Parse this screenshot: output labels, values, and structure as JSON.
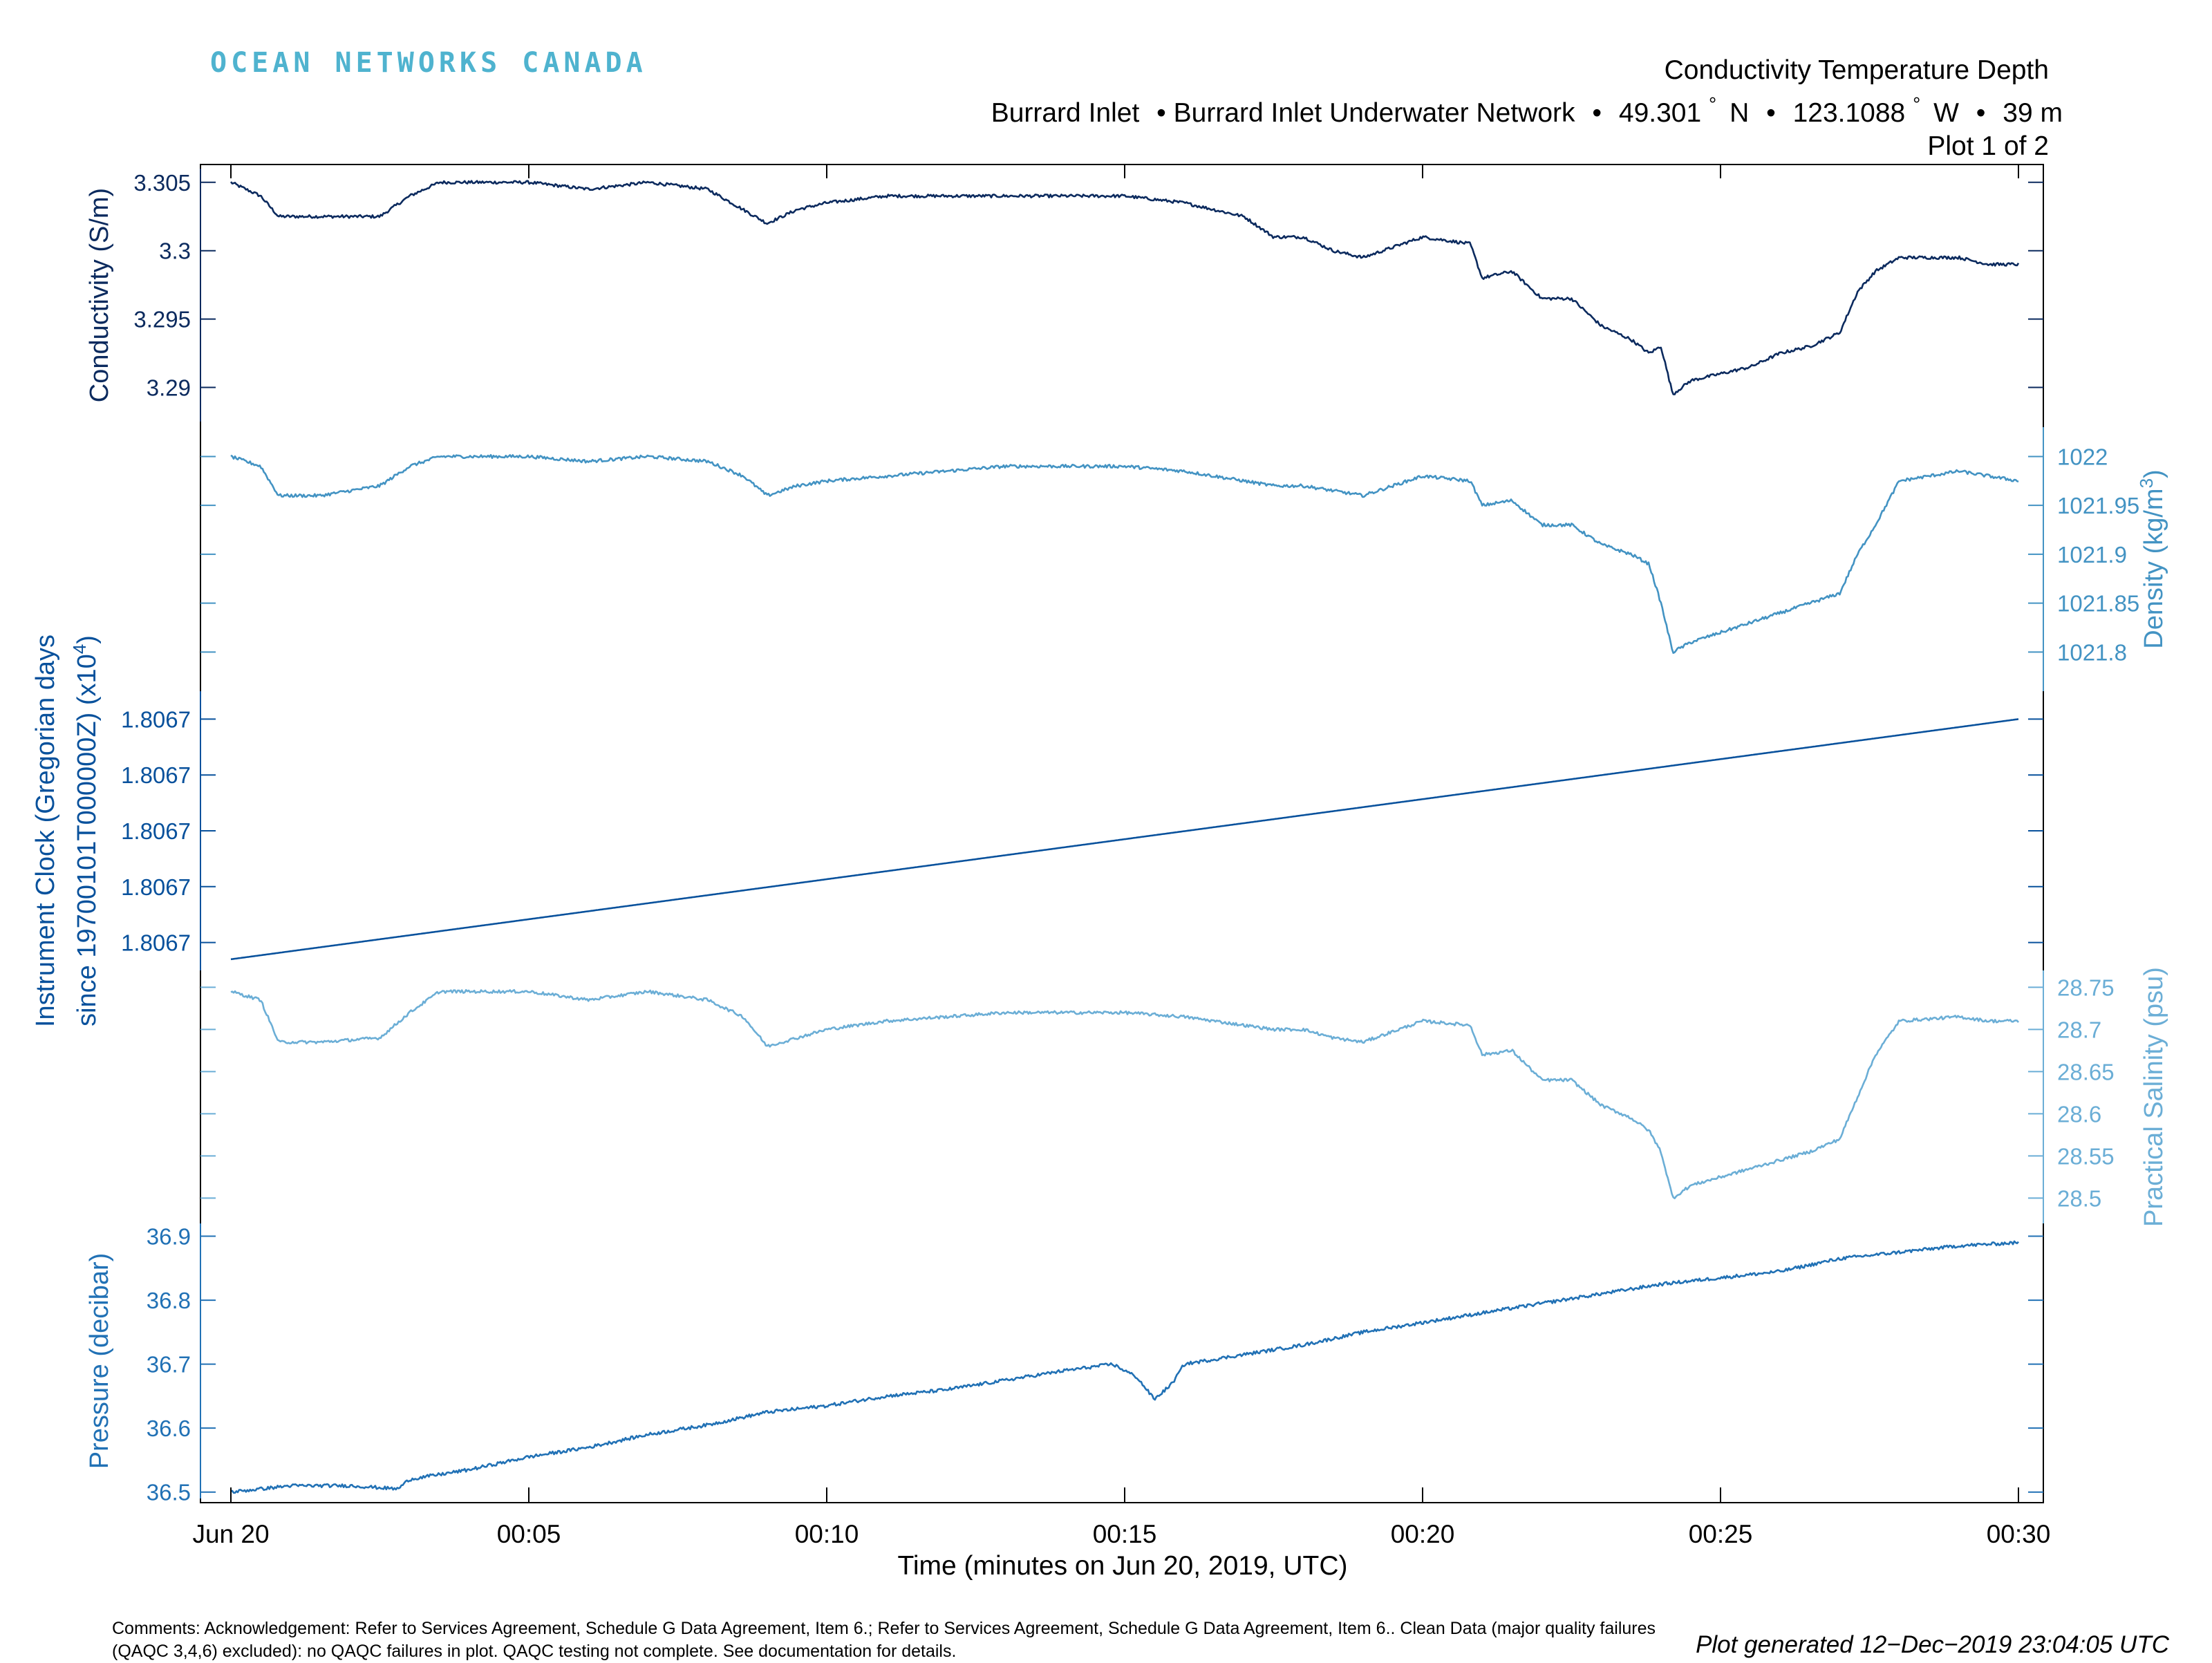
{
  "header": {
    "logo_text": "OCEAN NETWORKS CANADA",
    "title": "Conductivity Temperature Depth",
    "subtitle_location": "Burrard Inlet",
    "subtitle_network": "Burrard Inlet Underwater Network",
    "subtitle_lat": "49.301",
    "subtitle_lat_hemi": "N",
    "subtitle_lon": "123.1088",
    "subtitle_lon_hemi": "W",
    "subtitle_depth": "39 m",
    "plot_index": "Plot 1 of 2",
    "degree_symbol": "°",
    "separator": "•"
  },
  "chart_data": {
    "type": "line",
    "xlabel": "Time (minutes on Jun 20, 2019, UTC)",
    "x_unit": "minutes after 2019-06-20 00:00 UTC",
    "xlim": [
      0,
      30
    ],
    "x_ticks": [
      0,
      5,
      10,
      15,
      20,
      25,
      30
    ],
    "x_tick_labels": [
      "Jun 20",
      "00:05",
      "00:10",
      "00:15",
      "00:20",
      "00:25",
      "00:30"
    ],
    "panels": [
      {
        "id": "conductivity",
        "ylabel": "Conductivity (S/m)",
        "axis_side": "left",
        "color": "#0b2a5e",
        "ylim": [
          3.2875,
          3.306
        ],
        "ticks": [
          3.29,
          3.295,
          3.3,
          3.305
        ],
        "tick_labels": [
          "3.29",
          "3.295",
          "3.3",
          "3.305"
        ],
        "x": [
          0,
          0.5,
          0.8,
          1.5,
          2.5,
          3.0,
          3.5,
          4.0,
          5.0,
          6.0,
          7.0,
          8.0,
          8.6,
          9.0,
          9.5,
          10.0,
          11.0,
          12.0,
          13.0,
          14.0,
          15.0,
          16.0,
          17.0,
          17.5,
          18.0,
          18.5,
          19.0,
          20.0,
          20.8,
          21.0,
          21.5,
          22.0,
          22.5,
          23.0,
          23.5,
          23.8,
          24.0,
          24.2,
          24.5,
          25.0,
          25.5,
          26.0,
          26.5,
          27.0,
          27.3,
          27.6,
          28.0,
          29.0,
          29.5,
          30.0
        ],
        "values": [
          3.305,
          3.304,
          3.3025,
          3.3025,
          3.3025,
          3.304,
          3.305,
          3.305,
          3.305,
          3.3045,
          3.305,
          3.3045,
          3.303,
          3.302,
          3.303,
          3.3035,
          3.304,
          3.304,
          3.304,
          3.304,
          3.304,
          3.3035,
          3.3025,
          3.301,
          3.301,
          3.3,
          3.2995,
          3.301,
          3.3005,
          3.298,
          3.2985,
          3.2965,
          3.2965,
          3.2945,
          3.2935,
          3.2925,
          3.293,
          3.2895,
          3.2905,
          3.291,
          3.2915,
          3.2925,
          3.293,
          3.294,
          3.297,
          3.2985,
          3.2995,
          3.2995,
          3.299,
          3.299
        ]
      },
      {
        "id": "density",
        "ylabel": "Density (kg/m",
        "ylabel_sup": "3",
        "ylabel_end": ")",
        "axis_side": "right",
        "color": "#4393c3",
        "ylim": [
          1021.76,
          1022.03
        ],
        "ticks": [
          1021.8,
          1021.85,
          1021.9,
          1021.95,
          1022
        ],
        "tick_labels": [
          "1021.8",
          "1021.85",
          "1021.9",
          "1021.95",
          "1022"
        ],
        "x": [
          0,
          0.5,
          0.8,
          1.5,
          2.5,
          3.0,
          3.5,
          4.0,
          5.0,
          6.0,
          7.0,
          8.0,
          8.6,
          9.0,
          9.5,
          10.0,
          11.0,
          12.0,
          13.0,
          14.0,
          15.0,
          16.0,
          17.0,
          17.5,
          18.0,
          18.5,
          19.0,
          20.0,
          20.8,
          21.0,
          21.5,
          22.0,
          22.5,
          23.0,
          23.5,
          23.8,
          24.0,
          24.2,
          24.5,
          25.0,
          25.5,
          26.0,
          26.5,
          27.0,
          27.3,
          27.6,
          28.0,
          29.0,
          29.5,
          30.0
        ],
        "values": [
          1022.0,
          1021.99,
          1021.96,
          1021.96,
          1021.97,
          1021.99,
          1022.0,
          1022.0,
          1022.0,
          1021.995,
          1022.0,
          1021.995,
          1021.98,
          1021.96,
          1021.97,
          1021.975,
          1021.98,
          1021.985,
          1021.99,
          1021.99,
          1021.99,
          1021.985,
          1021.975,
          1021.97,
          1021.97,
          1021.965,
          1021.96,
          1021.98,
          1021.975,
          1021.95,
          1021.955,
          1021.93,
          1021.93,
          1021.91,
          1021.9,
          1021.89,
          1021.85,
          1021.8,
          1021.81,
          1021.82,
          1021.83,
          1021.84,
          1021.85,
          1021.86,
          1021.9,
          1021.93,
          1021.975,
          1021.985,
          1021.98,
          1021.975
        ]
      },
      {
        "id": "instrument_clock",
        "ylabel_line1": "Instrument Clock (Gregorian days",
        "ylabel_line2": "since 19700101T000000Z) (x10",
        "ylabel_sup": "4",
        "ylabel_end": ")",
        "axis_side": "left",
        "color": "#08519c",
        "ylim": [
          0,
          1
        ],
        "ticks": [
          0.1,
          0.3,
          0.5,
          0.7,
          0.9
        ],
        "tick_labels": [
          "1.8067",
          "1.8067",
          "1.8067",
          "1.8067",
          "1.8067"
        ],
        "x": [
          0,
          30
        ],
        "values": [
          0.04,
          0.9
        ]
      },
      {
        "id": "salinity",
        "ylabel": "Practical Salinity (psu)",
        "axis_side": "right",
        "color": "#6baed6",
        "ylim": [
          28.47,
          28.77
        ],
        "ticks": [
          28.5,
          28.55,
          28.6,
          28.65,
          28.7,
          28.75
        ],
        "tick_labels": [
          "28.5",
          "28.55",
          "28.6",
          "28.65",
          "28.7",
          "28.75"
        ],
        "x": [
          0,
          0.5,
          0.8,
          1.5,
          2.5,
          3.0,
          3.5,
          4.0,
          5.0,
          6.0,
          7.0,
          8.0,
          8.6,
          9.0,
          9.5,
          10.0,
          11.0,
          12.0,
          13.0,
          14.0,
          15.0,
          16.0,
          17.0,
          17.5,
          18.0,
          18.5,
          19.0,
          20.0,
          20.8,
          21.0,
          21.5,
          22.0,
          22.5,
          23.0,
          23.5,
          23.8,
          24.0,
          24.2,
          24.5,
          25.0,
          25.5,
          26.0,
          26.5,
          27.0,
          27.3,
          27.6,
          28.0,
          29.0,
          29.5,
          30.0
        ],
        "values": [
          28.745,
          28.735,
          28.685,
          28.685,
          28.69,
          28.72,
          28.745,
          28.745,
          28.745,
          28.735,
          28.745,
          28.735,
          28.715,
          28.68,
          28.69,
          28.7,
          28.71,
          28.715,
          28.72,
          28.72,
          28.72,
          28.715,
          28.705,
          28.7,
          28.7,
          28.69,
          28.685,
          28.71,
          28.705,
          28.67,
          28.675,
          28.64,
          28.64,
          28.61,
          28.595,
          28.58,
          28.555,
          28.5,
          28.515,
          28.525,
          28.535,
          28.545,
          28.555,
          28.57,
          28.62,
          28.67,
          28.71,
          28.715,
          28.71,
          28.71
        ]
      },
      {
        "id": "pressure",
        "ylabel": "Pressure (decibar)",
        "axis_side": "left",
        "color": "#2171b5",
        "ylim": [
          36.49,
          36.92
        ],
        "ticks": [
          36.5,
          36.6,
          36.7,
          36.8,
          36.9
        ],
        "tick_labels": [
          "36.5",
          "36.6",
          "36.7",
          "36.8",
          "36.9"
        ],
        "x": [
          0,
          1,
          2,
          2.8,
          3,
          4,
          5,
          6,
          7,
          8,
          9,
          10,
          11,
          12,
          13,
          14,
          14.8,
          15.2,
          15.5,
          15.8,
          16,
          17,
          18,
          19,
          20,
          21,
          22,
          23,
          24,
          25,
          26,
          27,
          28,
          29,
          30
        ],
        "values": [
          36.5,
          36.51,
          36.51,
          36.505,
          36.52,
          36.535,
          36.555,
          36.57,
          36.59,
          36.605,
          36.625,
          36.635,
          36.65,
          36.66,
          36.675,
          36.69,
          36.7,
          36.68,
          36.645,
          36.67,
          36.7,
          36.715,
          36.73,
          36.75,
          36.765,
          36.78,
          36.795,
          36.81,
          36.825,
          36.835,
          36.845,
          36.865,
          36.875,
          36.885,
          36.89
        ]
      }
    ]
  },
  "footer": {
    "comments": "Comments: Acknowledgement: Refer to Services Agreement, Schedule G Data Agreement, Item 6.; Refer to Services Agreement, Schedule G Data Agreement, Item 6.. Clean Data (major quality failures (QAQC 3,4,6) excluded): no QAQC failures in plot. QAQC testing not complete. See documentation for details.",
    "generated": "Plot generated 12−Dec−2019 23:04:05 UTC"
  }
}
